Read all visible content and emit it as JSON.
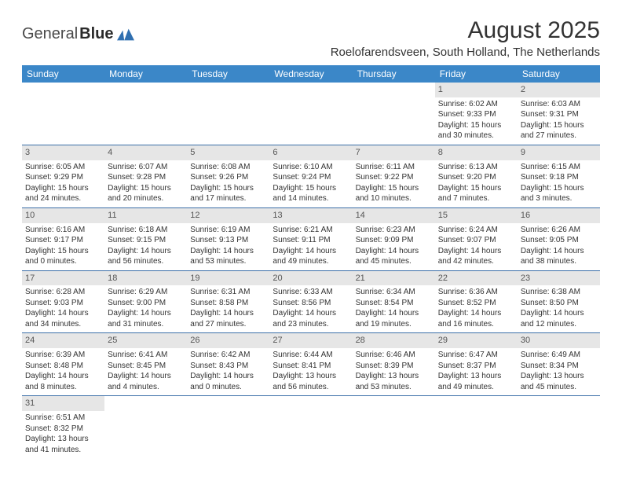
{
  "brand": {
    "part1": "General",
    "part2": "Blue"
  },
  "title": "August 2025",
  "location": "Roelofarendsveen, South Holland, The Netherlands",
  "colors": {
    "header_bg": "#3b87c8",
    "header_text": "#ffffff",
    "daynum_bg": "#e6e6e6",
    "border": "#3b6fa8",
    "text": "#333333"
  },
  "weekdays": [
    "Sunday",
    "Monday",
    "Tuesday",
    "Wednesday",
    "Thursday",
    "Friday",
    "Saturday"
  ],
  "weeks": [
    [
      {
        "n": "",
        "sr": "",
        "ss": "",
        "dl": ""
      },
      {
        "n": "",
        "sr": "",
        "ss": "",
        "dl": ""
      },
      {
        "n": "",
        "sr": "",
        "ss": "",
        "dl": ""
      },
      {
        "n": "",
        "sr": "",
        "ss": "",
        "dl": ""
      },
      {
        "n": "",
        "sr": "",
        "ss": "",
        "dl": ""
      },
      {
        "n": "1",
        "sr": "Sunrise: 6:02 AM",
        "ss": "Sunset: 9:33 PM",
        "dl": "Daylight: 15 hours and 30 minutes."
      },
      {
        "n": "2",
        "sr": "Sunrise: 6:03 AM",
        "ss": "Sunset: 9:31 PM",
        "dl": "Daylight: 15 hours and 27 minutes."
      }
    ],
    [
      {
        "n": "3",
        "sr": "Sunrise: 6:05 AM",
        "ss": "Sunset: 9:29 PM",
        "dl": "Daylight: 15 hours and 24 minutes."
      },
      {
        "n": "4",
        "sr": "Sunrise: 6:07 AM",
        "ss": "Sunset: 9:28 PM",
        "dl": "Daylight: 15 hours and 20 minutes."
      },
      {
        "n": "5",
        "sr": "Sunrise: 6:08 AM",
        "ss": "Sunset: 9:26 PM",
        "dl": "Daylight: 15 hours and 17 minutes."
      },
      {
        "n": "6",
        "sr": "Sunrise: 6:10 AM",
        "ss": "Sunset: 9:24 PM",
        "dl": "Daylight: 15 hours and 14 minutes."
      },
      {
        "n": "7",
        "sr": "Sunrise: 6:11 AM",
        "ss": "Sunset: 9:22 PM",
        "dl": "Daylight: 15 hours and 10 minutes."
      },
      {
        "n": "8",
        "sr": "Sunrise: 6:13 AM",
        "ss": "Sunset: 9:20 PM",
        "dl": "Daylight: 15 hours and 7 minutes."
      },
      {
        "n": "9",
        "sr": "Sunrise: 6:15 AM",
        "ss": "Sunset: 9:18 PM",
        "dl": "Daylight: 15 hours and 3 minutes."
      }
    ],
    [
      {
        "n": "10",
        "sr": "Sunrise: 6:16 AM",
        "ss": "Sunset: 9:17 PM",
        "dl": "Daylight: 15 hours and 0 minutes."
      },
      {
        "n": "11",
        "sr": "Sunrise: 6:18 AM",
        "ss": "Sunset: 9:15 PM",
        "dl": "Daylight: 14 hours and 56 minutes."
      },
      {
        "n": "12",
        "sr": "Sunrise: 6:19 AM",
        "ss": "Sunset: 9:13 PM",
        "dl": "Daylight: 14 hours and 53 minutes."
      },
      {
        "n": "13",
        "sr": "Sunrise: 6:21 AM",
        "ss": "Sunset: 9:11 PM",
        "dl": "Daylight: 14 hours and 49 minutes."
      },
      {
        "n": "14",
        "sr": "Sunrise: 6:23 AM",
        "ss": "Sunset: 9:09 PM",
        "dl": "Daylight: 14 hours and 45 minutes."
      },
      {
        "n": "15",
        "sr": "Sunrise: 6:24 AM",
        "ss": "Sunset: 9:07 PM",
        "dl": "Daylight: 14 hours and 42 minutes."
      },
      {
        "n": "16",
        "sr": "Sunrise: 6:26 AM",
        "ss": "Sunset: 9:05 PM",
        "dl": "Daylight: 14 hours and 38 minutes."
      }
    ],
    [
      {
        "n": "17",
        "sr": "Sunrise: 6:28 AM",
        "ss": "Sunset: 9:03 PM",
        "dl": "Daylight: 14 hours and 34 minutes."
      },
      {
        "n": "18",
        "sr": "Sunrise: 6:29 AM",
        "ss": "Sunset: 9:00 PM",
        "dl": "Daylight: 14 hours and 31 minutes."
      },
      {
        "n": "19",
        "sr": "Sunrise: 6:31 AM",
        "ss": "Sunset: 8:58 PM",
        "dl": "Daylight: 14 hours and 27 minutes."
      },
      {
        "n": "20",
        "sr": "Sunrise: 6:33 AM",
        "ss": "Sunset: 8:56 PM",
        "dl": "Daylight: 14 hours and 23 minutes."
      },
      {
        "n": "21",
        "sr": "Sunrise: 6:34 AM",
        "ss": "Sunset: 8:54 PM",
        "dl": "Daylight: 14 hours and 19 minutes."
      },
      {
        "n": "22",
        "sr": "Sunrise: 6:36 AM",
        "ss": "Sunset: 8:52 PM",
        "dl": "Daylight: 14 hours and 16 minutes."
      },
      {
        "n": "23",
        "sr": "Sunrise: 6:38 AM",
        "ss": "Sunset: 8:50 PM",
        "dl": "Daylight: 14 hours and 12 minutes."
      }
    ],
    [
      {
        "n": "24",
        "sr": "Sunrise: 6:39 AM",
        "ss": "Sunset: 8:48 PM",
        "dl": "Daylight: 14 hours and 8 minutes."
      },
      {
        "n": "25",
        "sr": "Sunrise: 6:41 AM",
        "ss": "Sunset: 8:45 PM",
        "dl": "Daylight: 14 hours and 4 minutes."
      },
      {
        "n": "26",
        "sr": "Sunrise: 6:42 AM",
        "ss": "Sunset: 8:43 PM",
        "dl": "Daylight: 14 hours and 0 minutes."
      },
      {
        "n": "27",
        "sr": "Sunrise: 6:44 AM",
        "ss": "Sunset: 8:41 PM",
        "dl": "Daylight: 13 hours and 56 minutes."
      },
      {
        "n": "28",
        "sr": "Sunrise: 6:46 AM",
        "ss": "Sunset: 8:39 PM",
        "dl": "Daylight: 13 hours and 53 minutes."
      },
      {
        "n": "29",
        "sr": "Sunrise: 6:47 AM",
        "ss": "Sunset: 8:37 PM",
        "dl": "Daylight: 13 hours and 49 minutes."
      },
      {
        "n": "30",
        "sr": "Sunrise: 6:49 AM",
        "ss": "Sunset: 8:34 PM",
        "dl": "Daylight: 13 hours and 45 minutes."
      }
    ],
    [
      {
        "n": "31",
        "sr": "Sunrise: 6:51 AM",
        "ss": "Sunset: 8:32 PM",
        "dl": "Daylight: 13 hours and 41 minutes."
      },
      {
        "n": "",
        "sr": "",
        "ss": "",
        "dl": ""
      },
      {
        "n": "",
        "sr": "",
        "ss": "",
        "dl": ""
      },
      {
        "n": "",
        "sr": "",
        "ss": "",
        "dl": ""
      },
      {
        "n": "",
        "sr": "",
        "ss": "",
        "dl": ""
      },
      {
        "n": "",
        "sr": "",
        "ss": "",
        "dl": ""
      },
      {
        "n": "",
        "sr": "",
        "ss": "",
        "dl": ""
      }
    ]
  ]
}
